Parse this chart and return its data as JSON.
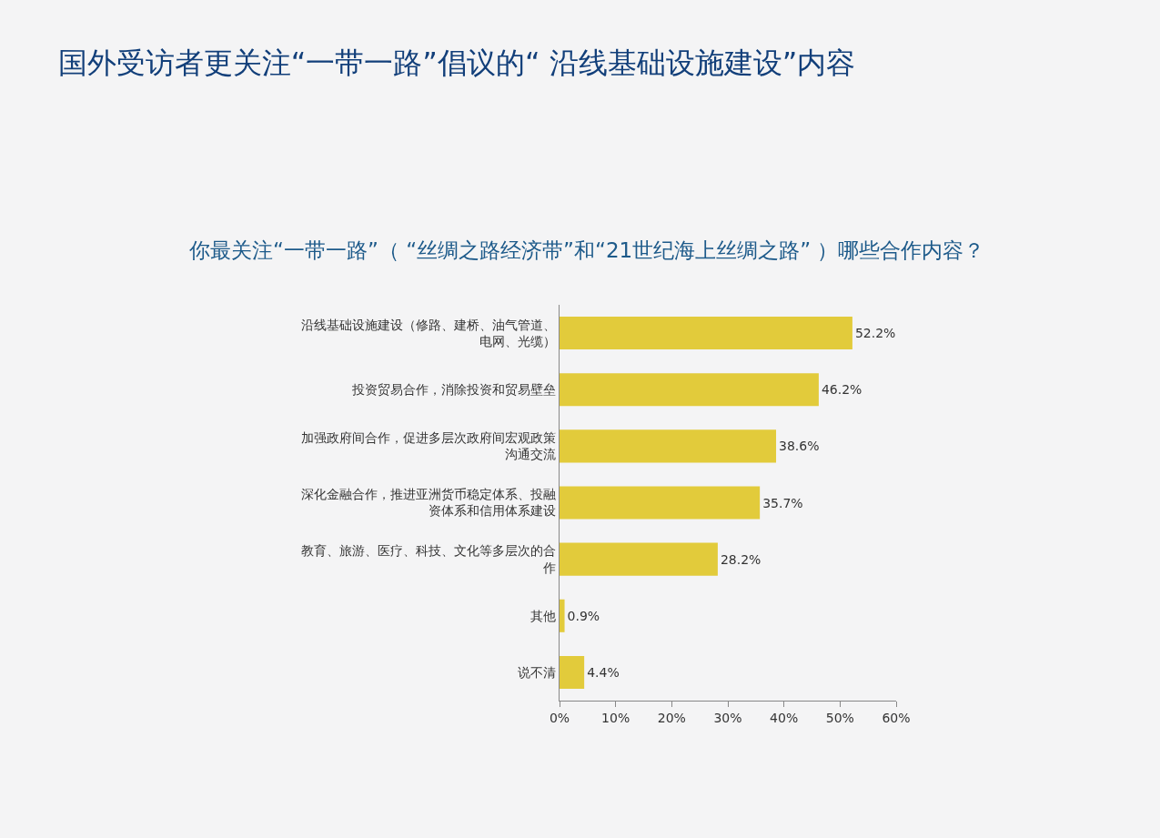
{
  "chart_data": {
    "type": "bar",
    "orientation": "horizontal",
    "title": "国外受访者更关注“一带一路”倡议的“ 沿线基础设施建设”内容",
    "subtitle": "你最关注“一带一路”（ “丝绸之路经济带”和“21世纪海上丝绸之路” ）哪些合作内容？",
    "categories": [
      "沿线基础设施建设（修路、建桥、油气管道、电网、光缆）",
      "投资贸易合作，消除投资和贸易壁垒",
      "加强政府间合作，促进多层次政府间宏观政策沟通交流",
      "深化金融合作，推进亚洲货币稳定体系、投融资体系和信用体系建设",
      "教育、旅游、医疗、科技、文化等多层次的合作",
      "其他",
      "说不清"
    ],
    "values": [
      52.2,
      46.2,
      38.6,
      35.7,
      28.2,
      0.9,
      4.4
    ],
    "value_labels": [
      "52.2%",
      "46.2%",
      "38.6%",
      "35.7%",
      "28.2%",
      "0.9%",
      "4.4%"
    ],
    "color": "#e2cb3b",
    "xlim": [
      0,
      60
    ],
    "xticks": [
      {
        "value": 0,
        "label": "0%"
      },
      {
        "value": 10,
        "label": "10%"
      },
      {
        "value": 20,
        "label": "20%"
      },
      {
        "value": 30,
        "label": "30%"
      },
      {
        "value": 40,
        "label": "40%"
      },
      {
        "value": 50,
        "label": "50%"
      },
      {
        "value": 60,
        "label": "60%"
      }
    ],
    "grid": false,
    "legend": false
  }
}
